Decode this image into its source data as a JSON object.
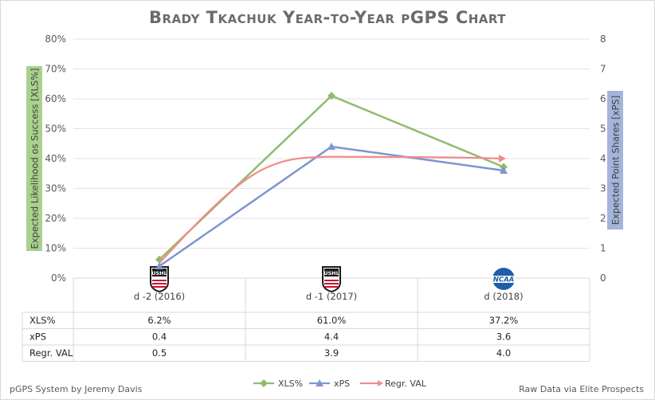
{
  "chart_data": {
    "type": "line",
    "title": "Brady Tkachuk Year-to-Year pGPS Chart",
    "categories": [
      "d -2 (2016)",
      "d -1 (2017)",
      "d (2018)"
    ],
    "category_leagues": [
      "USHL",
      "USHL",
      "NCAA"
    ],
    "y_left": {
      "label": "Expected Likelihood os Success [XLS%]",
      "range": [
        0,
        80
      ],
      "ticks": [
        "0%",
        "10%",
        "20%",
        "30%",
        "40%",
        "50%",
        "60%",
        "70%",
        "80%"
      ]
    },
    "y_right": {
      "label": "Expected Point Shares [xPS]",
      "range": [
        0,
        8
      ],
      "ticks": [
        "0",
        "1",
        "2",
        "3",
        "4",
        "5",
        "6",
        "7",
        "8"
      ]
    },
    "series": [
      {
        "name": "XLS%",
        "axis": "left",
        "color": "#8fbc6a",
        "marker": "diamond",
        "values": [
          6.2,
          61.0,
          37.2
        ],
        "table_values": [
          "6.2%",
          "61.0%",
          "37.2%"
        ]
      },
      {
        "name": "xPS",
        "axis": "right",
        "color": "#7f95cf",
        "marker": "triangle",
        "values": [
          0.4,
          4.4,
          3.6
        ],
        "table_values": [
          "0.4",
          "4.4",
          "3.6"
        ]
      },
      {
        "name": "Regr. VAL",
        "axis": "right",
        "color": "#f08c8c",
        "marker": "arrow",
        "values": [
          0.5,
          3.9,
          4.0
        ],
        "table_values": [
          "0.5",
          "3.9",
          "4.0"
        ]
      }
    ]
  },
  "footer": {
    "left": "pGPS System by Jeremy Davis",
    "right": "Raw Data via Elite Prospects"
  }
}
